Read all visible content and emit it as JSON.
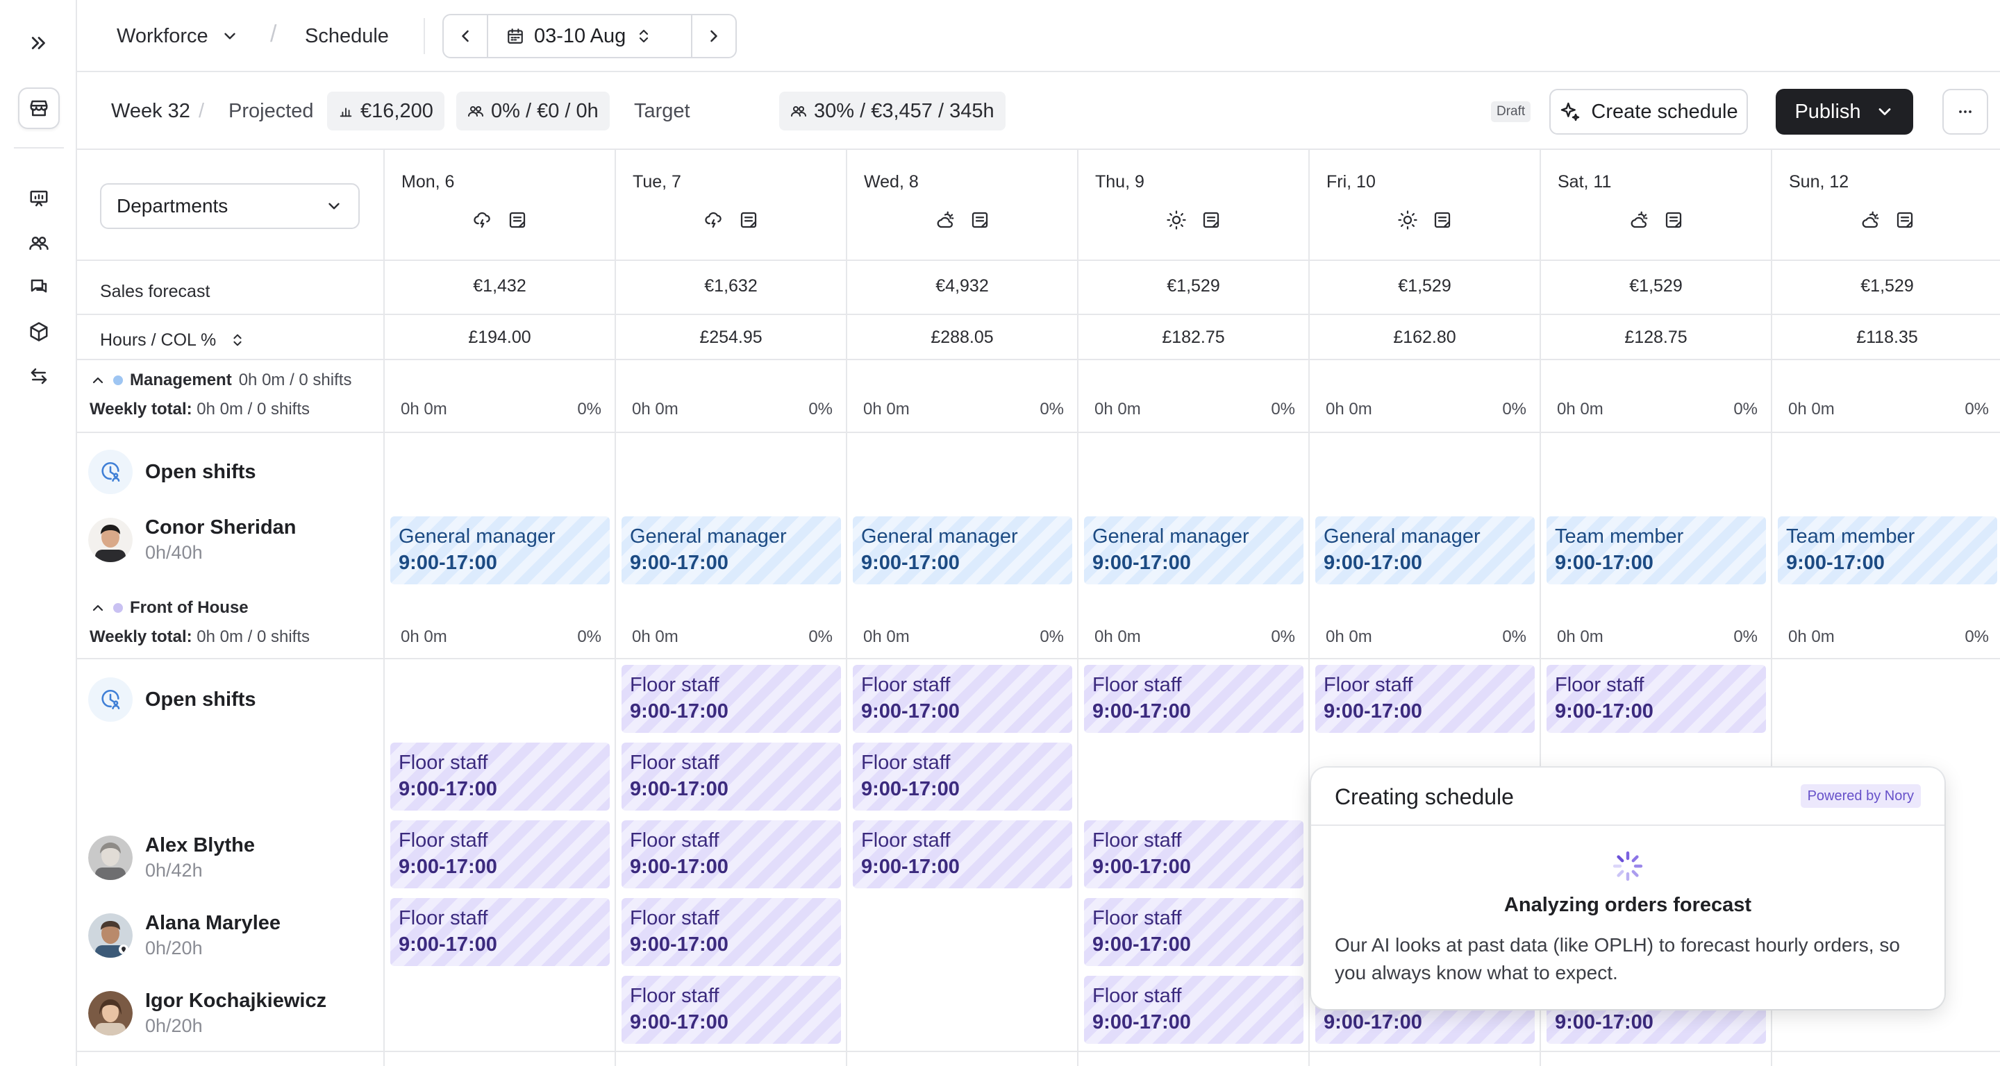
{
  "breadcrumb": {
    "workforce": "Workforce",
    "schedule": "Schedule"
  },
  "date_range": "03-10 Aug",
  "stats": {
    "week": "Week 32",
    "projected_label": "Projected",
    "projected_value": "€16,200",
    "projected_labour": "0% / €0 / 0h",
    "target_label": "Target",
    "target_value": "30% / €3,457 / 345h"
  },
  "actions": {
    "draft": "Draft",
    "create": "Create schedule",
    "publish": "Publish"
  },
  "filter": {
    "departments": "Departments"
  },
  "days": [
    {
      "label": "Mon, 6",
      "weather": "storm",
      "sales": "€1,432",
      "hours": "£194.00"
    },
    {
      "label": "Tue, 7",
      "weather": "storm",
      "sales": "€1,632",
      "hours": "£254.95"
    },
    {
      "label": "Wed, 8",
      "weather": "cloud-sun",
      "sales": "€4,932",
      "hours": "£288.05"
    },
    {
      "label": "Thu, 9",
      "weather": "sun",
      "sales": "€1,529",
      "hours": "£182.75"
    },
    {
      "label": "Fri, 10",
      "weather": "sun",
      "sales": "€1,529",
      "hours": "£162.80"
    },
    {
      "label": "Sat, 11",
      "weather": "cloud-sun",
      "sales": "€1,529",
      "hours": "£128.75"
    },
    {
      "label": "Sun, 12",
      "weather": "cloud-sun",
      "sales": "€1,529",
      "hours": "£118.35"
    }
  ],
  "rows": {
    "sales_forecast": "Sales forecast",
    "hours_col": "Hours / COL %"
  },
  "day_total": {
    "hours": "0h 0m",
    "pct": "0%"
  },
  "sections": {
    "management": {
      "title": "Management",
      "summary": "0h 0m / 0 shifts",
      "dot_color": "#9ec5f2",
      "weekly_label": "Weekly total:",
      "weekly_value": "0h 0m / 0 shifts",
      "open_shifts": "Open shifts",
      "staff": [
        {
          "name": "Conor Sheridan",
          "hours": "0h/40h",
          "shifts": [
            {
              "role": "General manager",
              "time": "9:00-17:00"
            },
            {
              "role": "General manager",
              "time": "9:00-17:00"
            },
            {
              "role": "General manager",
              "time": "9:00-17:00"
            },
            {
              "role": "General manager",
              "time": "9:00-17:00"
            },
            {
              "role": "General manager",
              "time": "9:00-17:00"
            },
            {
              "role": "Team member",
              "time": "9:00-17:00"
            },
            {
              "role": "Team member",
              "time": "9:00-17:00"
            }
          ]
        }
      ]
    },
    "front": {
      "title": "Front of House",
      "dot_color": "#c9c1f2",
      "weekly_label": "Weekly total:",
      "weekly_value": "0h 0m / 0 shifts",
      "open_shifts": "Open shifts",
      "shift_role": "Floor staff",
      "shift_time": "9:00-17:00",
      "staff": [
        {
          "name": "Alex Blythe",
          "hours": "0h/42h"
        },
        {
          "name": "Alana Marylee",
          "hours": "0h/20h"
        },
        {
          "name": "Igor Kochajkiewicz",
          "hours": "0h/20h"
        }
      ]
    }
  },
  "popup": {
    "title": "Creating schedule",
    "powered": "Powered by Nory",
    "heading": "Analyzing orders forecast",
    "body": "Our AI looks at past data (like OPLH) to forecast hourly orders, so you always know what to expect."
  }
}
